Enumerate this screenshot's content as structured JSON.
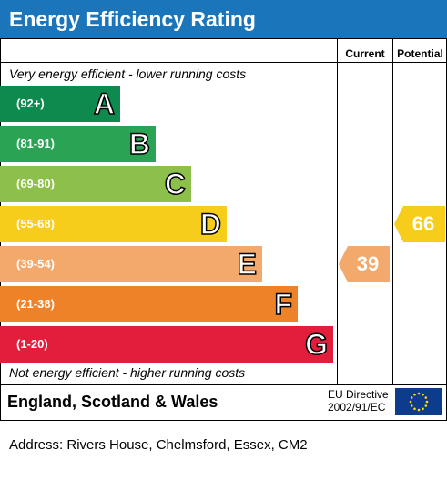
{
  "title": "Energy Efficiency Rating",
  "headers": {
    "current": "Current",
    "potential": "Potential"
  },
  "captions": {
    "top": "Very energy efficient - lower running costs",
    "bottom": "Not energy efficient - higher running costs"
  },
  "chart_data": {
    "type": "bar",
    "categories": [
      "A",
      "B",
      "C",
      "D",
      "E",
      "F",
      "G"
    ],
    "ranges": [
      "(92+)",
      "(81-91)",
      "(69-80)",
      "(55-68)",
      "(39-54)",
      "(21-38)",
      "(1-20)"
    ],
    "colors": [
      "#0e8a4f",
      "#2aa354",
      "#8dc04a",
      "#f7cd1b",
      "#f3a96c",
      "#ee8228",
      "#e31d3c"
    ],
    "current": {
      "value": 39,
      "band": "E",
      "color": "#f3a96c"
    },
    "potential": {
      "value": 66,
      "band": "D",
      "color": "#f7cd1b"
    }
  },
  "footer": {
    "region": "England, Scotland & Wales",
    "directive_line1": "EU Directive",
    "directive_line2": "2002/91/EC",
    "flag_icon": "eu-flag-icon"
  },
  "address": "Address: Rivers House, Chelmsford, Essex, CM2"
}
